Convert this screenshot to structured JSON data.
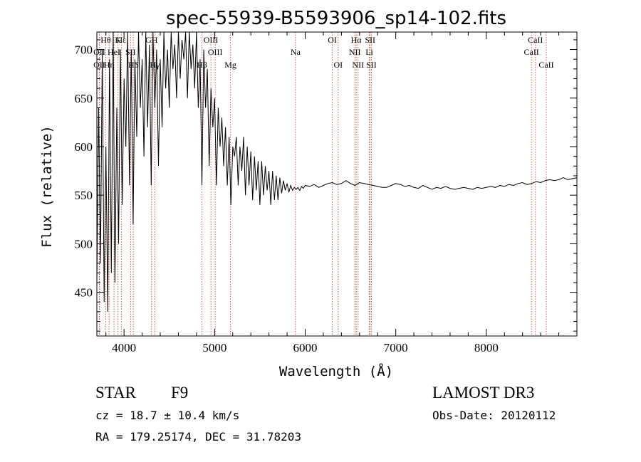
{
  "chart_data": {
    "type": "line",
    "title": "spec-55939-B5593906_sp14-102.fits",
    "xlabel": "Wavelength (Å)",
    "ylabel": "Flux (relative)",
    "xlim": [
      3700,
      9000
    ],
    "ylim": [
      405,
      718
    ],
    "x_ticks": [
      4000,
      5000,
      6000,
      7000,
      8000
    ],
    "y_ticks": [
      450,
      500,
      550,
      600,
      650,
      700
    ],
    "series": [
      {
        "name": "spectrum",
        "x": [
          3700,
          3720,
          3740,
          3760,
          3780,
          3800,
          3820,
          3840,
          3860,
          3880,
          3900,
          3920,
          3940,
          3960,
          3980,
          4000,
          4020,
          4040,
          4060,
          4080,
          4100,
          4120,
          4140,
          4160,
          4180,
          4200,
          4220,
          4240,
          4260,
          4280,
          4300,
          4320,
          4340,
          4360,
          4380,
          4400,
          4420,
          4440,
          4460,
          4480,
          4500,
          4520,
          4540,
          4560,
          4580,
          4600,
          4620,
          4640,
          4660,
          4680,
          4700,
          4720,
          4740,
          4760,
          4780,
          4800,
          4820,
          4840,
          4860,
          4880,
          4900,
          4920,
          4940,
          4960,
          4980,
          5000,
          5020,
          5040,
          5060,
          5080,
          5100,
          5120,
          5140,
          5160,
          5180,
          5200,
          5220,
          5240,
          5260,
          5280,
          5300,
          5320,
          5340,
          5360,
          5380,
          5400,
          5420,
          5440,
          5460,
          5480,
          5500,
          5520,
          5540,
          5560,
          5580,
          5600,
          5620,
          5640,
          5660,
          5680,
          5700,
          5720,
          5740,
          5760,
          5780,
          5800,
          5820,
          5840,
          5860,
          5880,
          5900,
          5920,
          5940,
          5960,
          5980,
          6000,
          6050,
          6100,
          6150,
          6200,
          6250,
          6300,
          6350,
          6400,
          6450,
          6500,
          6550,
          6600,
          6650,
          6700,
          6750,
          6800,
          6850,
          6900,
          6950,
          7000,
          7050,
          7100,
          7150,
          7200,
          7250,
          7300,
          7350,
          7400,
          7450,
          7500,
          7550,
          7600,
          7650,
          7700,
          7750,
          7800,
          7850,
          7900,
          7950,
          8000,
          8050,
          8100,
          8150,
          8200,
          8250,
          8300,
          8350,
          8400,
          8450,
          8500,
          8550,
          8600,
          8650,
          8700,
          8750,
          8800,
          8850,
          8900,
          8950,
          9000
        ],
        "y": [
          460,
          640,
          480,
          700,
          440,
          600,
          430,
          690,
          470,
          718,
          460,
          640,
          500,
          700,
          540,
          670,
          600,
          718,
          560,
          700,
          520,
          690,
          610,
          718,
          640,
          690,
          590,
          718,
          620,
          705,
          560,
          718,
          640,
          700,
          580,
          690,
          620,
          718,
          660,
          700,
          640,
          718,
          680,
          705,
          650,
          718,
          670,
          710,
          690,
          718,
          650,
          718,
          680,
          705,
          660,
          718,
          640,
          690,
          560,
          700,
          640,
          680,
          580,
          660,
          620,
          650,
          560,
          640,
          600,
          630,
          580,
          620,
          560,
          610,
          540,
          600,
          590,
          610,
          560,
          600,
          575,
          610,
          550,
          600,
          560,
          595,
          545,
          590,
          555,
          585,
          540,
          585,
          550,
          580,
          555,
          575,
          540,
          575,
          545,
          570,
          545,
          568,
          552,
          565,
          555,
          562,
          553,
          560,
          555,
          558,
          556,
          558,
          555,
          559,
          557,
          560,
          559,
          561,
          558,
          560,
          562,
          563,
          561,
          562,
          565,
          562,
          560,
          563,
          562,
          561,
          560,
          559,
          558,
          558,
          560,
          562,
          561,
          559,
          560,
          558,
          557,
          560,
          558,
          556,
          558,
          557,
          559,
          557,
          556,
          557,
          558,
          557,
          556,
          558,
          557,
          558,
          559,
          558,
          560,
          559,
          561,
          560,
          562,
          563,
          561,
          562,
          564,
          563,
          565,
          566,
          565,
          566,
          568,
          566,
          567,
          568
        ]
      }
    ],
    "line_markers": [
      {
        "name": "Hθ",
        "x": 3798,
        "row": 0
      },
      {
        "name": "OII",
        "x": 3727,
        "row": 1
      },
      {
        "name": "OII",
        "x": 3727,
        "row": 2
      },
      {
        "name": "K",
        "x": 3934,
        "row": 0
      },
      {
        "name": "Hε",
        "x": 3970,
        "row": 0
      },
      {
        "name": "HeI",
        "x": 3889,
        "row": 1
      },
      {
        "name": "SII",
        "x": 4072,
        "row": 1
      },
      {
        "name": "Hη",
        "x": 3835,
        "row": 2
      },
      {
        "name": "Hδ",
        "x": 4102,
        "row": 2
      },
      {
        "name": "GH",
        "x": 4304,
        "row": 0
      },
      {
        "name": "Hγ",
        "x": 4340,
        "row": 2
      },
      {
        "name": "OIII",
        "x": 4959,
        "row": 0
      },
      {
        "name": "OIII",
        "x": 5007,
        "row": 1
      },
      {
        "name": "Hβ",
        "x": 4861,
        "row": 2
      },
      {
        "name": "Mg",
        "x": 5175,
        "row": 2
      },
      {
        "name": "Na",
        "x": 5893,
        "row": 1
      },
      {
        "name": "OI",
        "x": 6300,
        "row": 0
      },
      {
        "name": "OI",
        "x": 6364,
        "row": 2
      },
      {
        "name": "Hα",
        "x": 6563,
        "row": 0
      },
      {
        "name": "SII",
        "x": 6717,
        "row": 0
      },
      {
        "name": "NII",
        "x": 6548,
        "row": 1
      },
      {
        "name": "Li",
        "x": 6708,
        "row": 1
      },
      {
        "name": "NII",
        "x": 6584,
        "row": 2
      },
      {
        "name": "SII",
        "x": 6731,
        "row": 2
      },
      {
        "name": "CaII",
        "x": 8542,
        "row": 0
      },
      {
        "name": "CaII",
        "x": 8498,
        "row": 1
      },
      {
        "name": "CaII",
        "x": 8662,
        "row": 2
      }
    ]
  },
  "info": {
    "object_type": "STAR",
    "subclass": "F9",
    "survey": "LAMOST DR3",
    "cz": "cz = 18.7 ± 10.4 km/s",
    "obs_date": "Obs-Date: 20120112",
    "coords": "RA = 179.25174, DEC =  31.78203"
  }
}
